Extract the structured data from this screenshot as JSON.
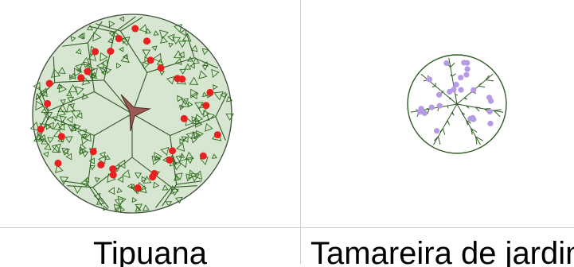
{
  "plants": [
    {
      "name": "Tipuana",
      "colors": {
        "canopy_fill": "#d7e6d0",
        "outline": "#3f4f3a",
        "branch": "#2f5a25",
        "trunk": "#9b5a52",
        "fruit": "#ea1f1f",
        "leaf": "#2e6b1e"
      },
      "icons": [
        "tree-canopy-icon",
        "fruit-dot-icon",
        "leaf-triangle-icon"
      ]
    },
    {
      "name": "Tamareira de jardim",
      "colors": {
        "canopy_fill": "#ffffff",
        "outline": "#2f5a25",
        "branch": "#2f5a25",
        "fruit": "#b79ae6"
      },
      "icons": [
        "palm-canopy-icon",
        "fruit-dot-icon"
      ]
    }
  ]
}
